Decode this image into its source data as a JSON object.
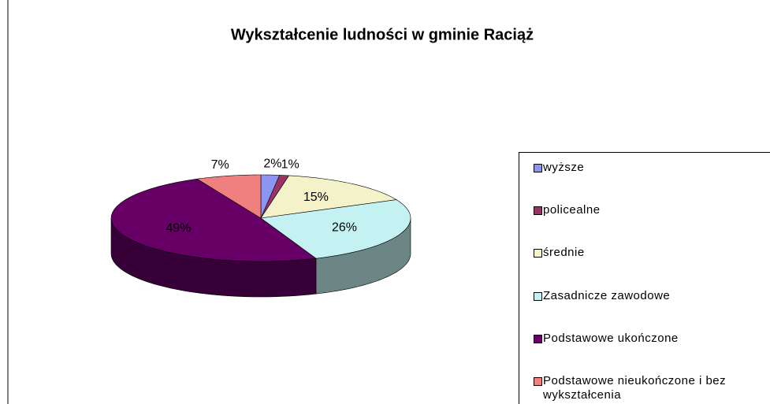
{
  "chart_data": {
    "type": "pie",
    "title": "Wykształcenie ludności w gminie Raciąż",
    "categories": [
      "wyższe",
      "policealne",
      "średnie",
      "Zasadnicze  zawodowe",
      "Podstawowe ukończone",
      "Podstawowe nieukończone i bez wykształcenia"
    ],
    "values": [
      2,
      1,
      15,
      26,
      49,
      7
    ],
    "value_labels": [
      "2%",
      "1%",
      "15%",
      "26%",
      "49%",
      "7%"
    ],
    "colors": [
      "#8c96f0",
      "#993366",
      "#f4f2c8",
      "#c4f2f2",
      "#660066",
      "#f08080"
    ],
    "legend": "right"
  }
}
